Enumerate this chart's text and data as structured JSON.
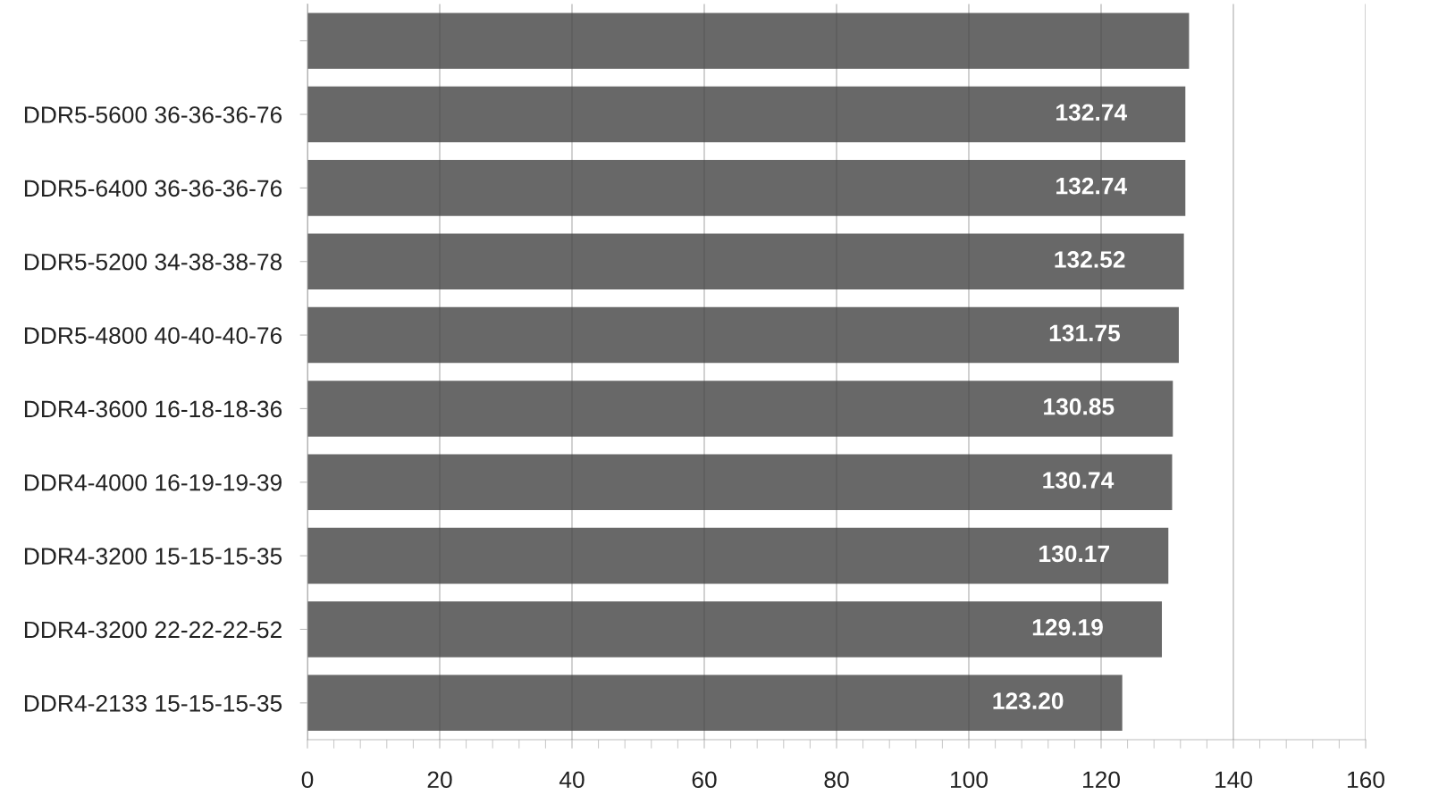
{
  "chart_data": {
    "type": "bar",
    "orientation": "horizontal",
    "categories": [
      null,
      "DDR5-5600 36-36-36-76",
      "DDR5-6400 36-36-36-76",
      "DDR5-5200 34-38-38-78",
      "DDR5-4800 40-40-40-76",
      "DDR4-3600 16-18-18-36",
      "DDR4-4000 16-19-19-39",
      "DDR4-3200 15-15-15-35",
      "DDR4-3200 22-22-22-52",
      "DDR4-2133 15-15-15-35"
    ],
    "values": [
      133.3,
      132.74,
      132.74,
      132.52,
      131.75,
      130.85,
      130.74,
      130.17,
      129.19,
      123.2
    ],
    "value_labels": [
      null,
      "132.74",
      "132.74",
      "132.52",
      "131.75",
      "130.85",
      "130.74",
      "130.17",
      "129.19",
      "123.20"
    ],
    "color": "#686868",
    "xlim": [
      0,
      160
    ],
    "xticks": [
      0,
      20,
      40,
      60,
      80,
      100,
      120,
      140,
      160
    ],
    "grid": "x",
    "legend": false
  }
}
